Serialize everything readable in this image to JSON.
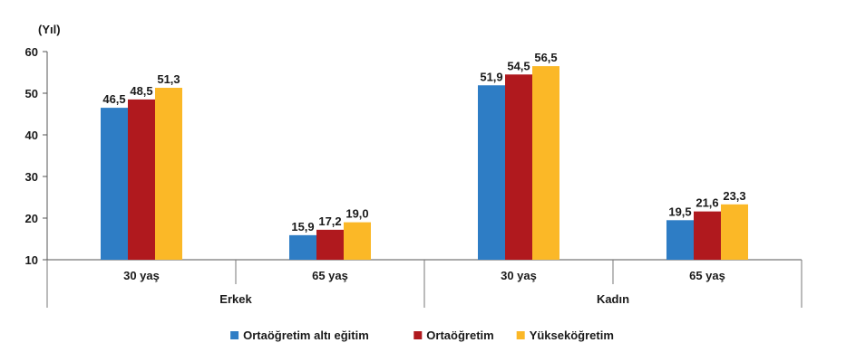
{
  "chart_data": {
    "type": "bar",
    "y_unit_label": "(Yıl)",
    "ylim": [
      10,
      60
    ],
    "yticks": [
      "10",
      "20",
      "30",
      "40",
      "50",
      "60"
    ],
    "grid": false,
    "legend_position": "bottom",
    "groups": [
      {
        "label": "Erkek",
        "categories": [
          "30 yaş",
          "65 yaş"
        ]
      },
      {
        "label": "Kadın",
        "categories": [
          "30 yaş",
          "65 yaş"
        ]
      }
    ],
    "series": [
      {
        "name": "Ortaöğretim altı eğitim",
        "color": "#2e7dc5",
        "values": [
          46.5,
          15.9,
          51.9,
          19.5
        ],
        "labels": [
          "46,5",
          "15,9",
          "51,9",
          "19,5"
        ]
      },
      {
        "name": "Ortaöğretim",
        "color": "#b0191e",
        "values": [
          48.5,
          17.2,
          54.5,
          21.6
        ],
        "labels": [
          "48,5",
          "17,2",
          "54,5",
          "21,6"
        ]
      },
      {
        "name": "Yükseköğretim",
        "color": "#fbb827",
        "values": [
          51.3,
          19.0,
          56.5,
          23.3
        ],
        "labels": [
          "51,3",
          "19,0",
          "56,5",
          "23,3"
        ]
      }
    ]
  }
}
